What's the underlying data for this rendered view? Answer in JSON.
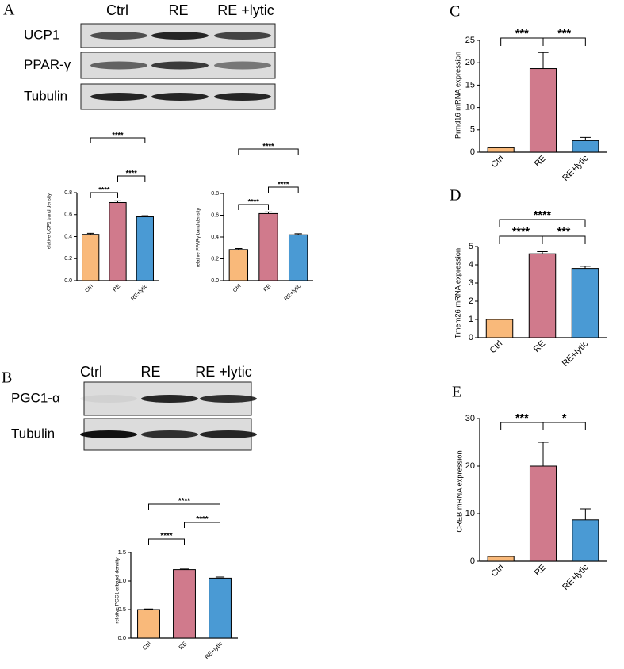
{
  "blots": [
    {
      "panel": "A",
      "columns": [
        "Ctrl",
        "RE",
        "RE +lytic"
      ],
      "rows": [
        "UCP1",
        "PPAR-γ",
        "Tubulin"
      ]
    },
    {
      "panel": "B",
      "columns": [
        "Ctrl",
        "RE",
        "RE +lytic"
      ],
      "rows": [
        "PGC1-α",
        "Tubulin"
      ]
    }
  ],
  "chart_data": [
    {
      "type": "bar",
      "ylabel": "relative UCP1 band density",
      "categories": [
        "Ctrl",
        "RE",
        "RE+lytic"
      ],
      "values": [
        0.42,
        0.71,
        0.58
      ],
      "errors": [
        0.01,
        0.015,
        0.01
      ],
      "colors": [
        "#f9b97a",
        "#d07a8c",
        "#4a9ad4"
      ],
      "ylim": [
        0,
        0.8
      ],
      "yticks": [
        {
          "value": 0,
          "label": "0.0"
        },
        0.2,
        0.4,
        0.6,
        0.8
      ],
      "annotations": [
        {
          "from": 0,
          "to": 1,
          "label": "****"
        },
        {
          "from": 1,
          "to": 2,
          "label": "****"
        },
        {
          "from": 0,
          "to": 2,
          "label": "****"
        }
      ]
    },
    {
      "type": "bar",
      "ylabel": "relative PPARγ band density",
      "categories": [
        "Ctrl",
        "RE",
        "RE+lytic"
      ],
      "values": [
        0.285,
        0.615,
        0.42
      ],
      "errors": [
        0.01,
        0.015,
        0.01
      ],
      "colors": [
        "#f9b97a",
        "#d07a8c",
        "#4a9ad4"
      ],
      "ylim": [
        0,
        0.8
      ],
      "yticks": [
        {
          "value": 0,
          "label": "0.0"
        },
        0.2,
        0.4,
        0.6,
        0.8
      ],
      "annotations": [
        {
          "from": 0,
          "to": 1,
          "label": "****"
        },
        {
          "from": 1,
          "to": 2,
          "label": "****"
        },
        {
          "from": 0,
          "to": 2,
          "label": "****"
        }
      ]
    },
    {
      "type": "bar",
      "ylabel": "relative PGC1-α band density",
      "categories": [
        "Ctrl",
        "RE",
        "RE+lytic"
      ],
      "values": [
        0.5,
        1.2,
        1.05
      ],
      "errors": [
        0.01,
        0.01,
        0.02
      ],
      "colors": [
        "#f9b97a",
        "#d07a8c",
        "#4a9ad4"
      ],
      "ylim": [
        0,
        1.5
      ],
      "yticks": [
        {
          "value": 0,
          "label": "0.0"
        },
        0.5,
        {
          "value": 1,
          "label": "1.0"
        },
        1.5
      ],
      "annotations": [
        {
          "from": 0,
          "to": 1,
          "label": "****"
        },
        {
          "from": 1,
          "to": 2,
          "label": "****"
        },
        {
          "from": 0,
          "to": 2,
          "label": "****"
        }
      ]
    },
    {
      "type": "bar",
      "panel": "C",
      "ylabel": "Prmd16 mRNA expression",
      "categories": [
        "Ctrl",
        "RE",
        "RE+lytic"
      ],
      "values": [
        1,
        18.7,
        2.6
      ],
      "errors": [
        0.1,
        3.6,
        0.7
      ],
      "colors": [
        "#f9b97a",
        "#d07a8c",
        "#4a9ad4"
      ],
      "ylim": [
        0,
        25
      ],
      "yticks": [
        0,
        5,
        10,
        15,
        20,
        25
      ],
      "annotations": [
        {
          "from": 0,
          "to": 1,
          "label": "***"
        },
        {
          "from": 1,
          "to": 2,
          "label": "***"
        }
      ]
    },
    {
      "type": "bar",
      "panel": "D",
      "ylabel": "Tmem26  mRNA expression",
      "categories": [
        "Ctrl",
        "RE",
        "RE+lytic"
      ],
      "values": [
        1,
        4.6,
        3.8
      ],
      "errors": [
        0,
        0.12,
        0.12
      ],
      "colors": [
        "#f9b97a",
        "#d07a8c",
        "#4a9ad4"
      ],
      "ylim": [
        0,
        5
      ],
      "yticks": [
        0,
        1,
        2,
        3,
        4,
        5
      ],
      "annotations": [
        {
          "from": 0,
          "to": 1,
          "label": "****"
        },
        {
          "from": 1,
          "to": 2,
          "label": "***"
        },
        {
          "from": 0,
          "to": 2,
          "label": "****"
        }
      ]
    },
    {
      "type": "bar",
      "panel": "E",
      "ylabel": "CREB  mRNA expression",
      "categories": [
        "Ctrl",
        "RE",
        "RE+lytic"
      ],
      "values": [
        1,
        20,
        8.7
      ],
      "errors": [
        0,
        5,
        2.3
      ],
      "colors": [
        "#f9b97a",
        "#d07a8c",
        "#4a9ad4"
      ],
      "ylim": [
        0,
        30
      ],
      "yticks": [
        0,
        10,
        20,
        30
      ],
      "annotations": [
        {
          "from": 0,
          "to": 1,
          "label": "***"
        },
        {
          "from": 1,
          "to": 2,
          "label": "*"
        }
      ]
    }
  ]
}
